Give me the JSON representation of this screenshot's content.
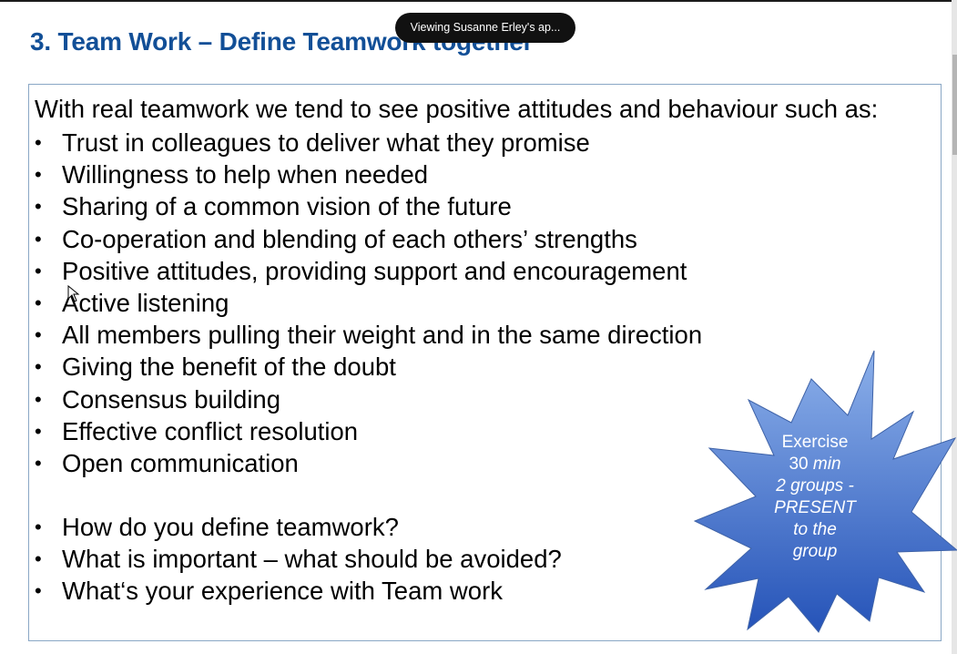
{
  "slide": {
    "title": "3. Team Work – Define Teamwork together",
    "intro": "With real teamwork we tend to see positive attitudes and behaviour such as:",
    "bullets": [
      "Trust in colleagues to deliver what they promise",
      "Willingness to help when needed",
      "Sharing of a common vision of the future",
      "Co-operation and blending of each others’ strengths",
      "Positive attitudes, providing support and encouragement",
      "Active listening",
      "All members pulling their weight and in the same direction",
      "Giving the benefit of the doubt",
      "Consensus building",
      "Effective conflict resolution",
      "Open communication"
    ],
    "questions": [
      "How do you define teamwork?",
      "What is important – what should be avoided?",
      "What‘s your experience with Team work"
    ],
    "exercise": {
      "line1": "Exercise",
      "line2_num": "30",
      "line2_unit": "min",
      "line3": "2 groups -",
      "line4": "PRESENT",
      "line5": "to the",
      "line6": "group"
    }
  },
  "overlay": {
    "viewing_label": "Viewing Susanne Erley's ap..."
  },
  "colors": {
    "title": "#124f97",
    "starburst_light": "#8cb0ea",
    "starburst_dark": "#2553b8",
    "box_border": "#8aa7c5"
  },
  "icons": [
    "mouse-cursor-icon",
    "starburst-shape"
  ]
}
